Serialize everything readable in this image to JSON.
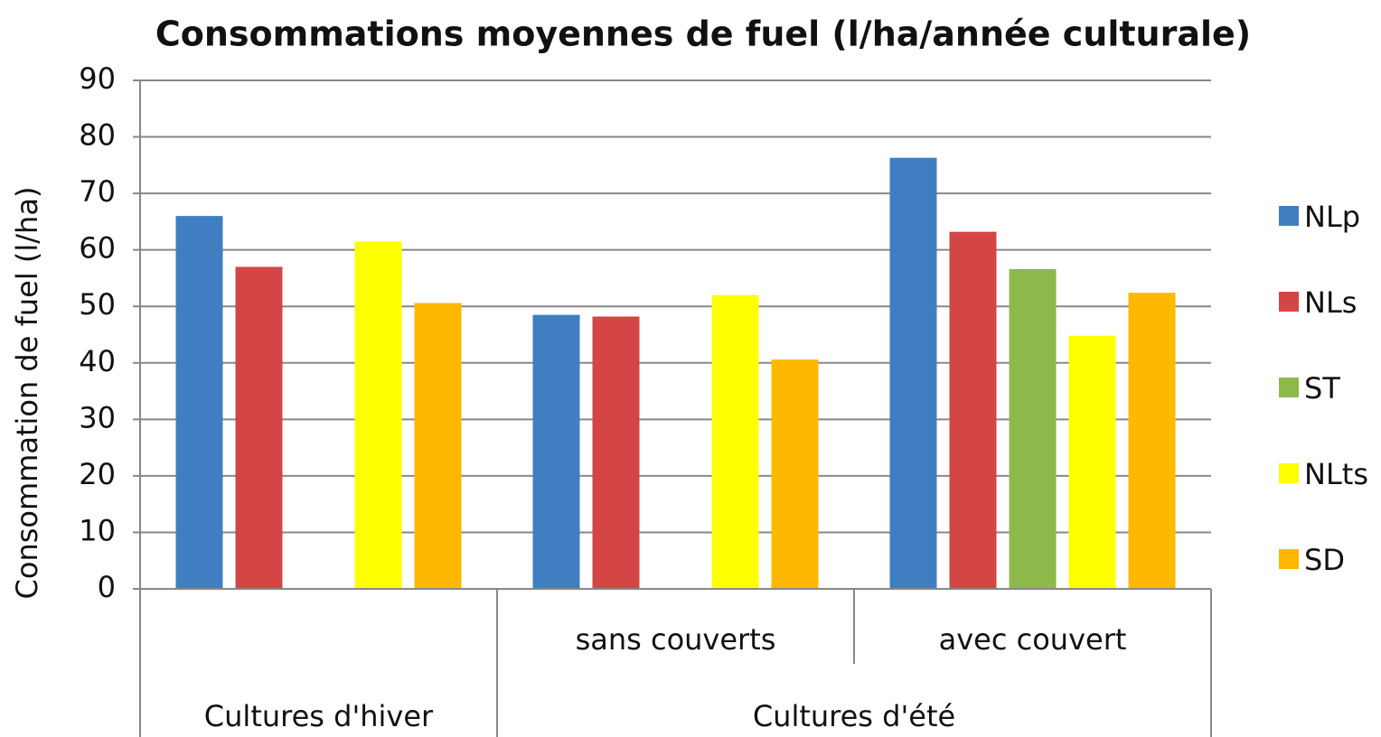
{
  "chart_data": {
    "type": "bar",
    "title": "Consommations moyennes de fuel (l/ha/année culturale)",
    "y_label": "Consommation de fuel (l/ha)",
    "categories": [
      null,
      "sans couverts",
      "avec couvert"
    ],
    "category_groups": [
      {
        "name": "Cultures d'hiver",
        "span": 1
      },
      {
        "name": "Cultures d'été",
        "span": 2
      }
    ],
    "series": [
      {
        "name": "NLp",
        "color": "#3f7fc1",
        "values": [
          66,
          48.5,
          76.3
        ]
      },
      {
        "name": "NLs",
        "color": "#d44545",
        "values": [
          57,
          48.2,
          63.2
        ]
      },
      {
        "name": "ST",
        "color": "#8db84a",
        "values": [
          null,
          null,
          56.6
        ]
      },
      {
        "name": "NLts",
        "color": "#ffff00",
        "values": [
          61.5,
          52,
          44.8
        ]
      },
      {
        "name": "SD",
        "color": "#ffb800",
        "values": [
          50.6,
          40.6,
          52.4
        ]
      }
    ],
    "ylim": [
      0,
      90
    ],
    "yticks": [
      0,
      10,
      20,
      30,
      40,
      50,
      60,
      70,
      80,
      90
    ],
    "grid": true,
    "legend": "right"
  }
}
